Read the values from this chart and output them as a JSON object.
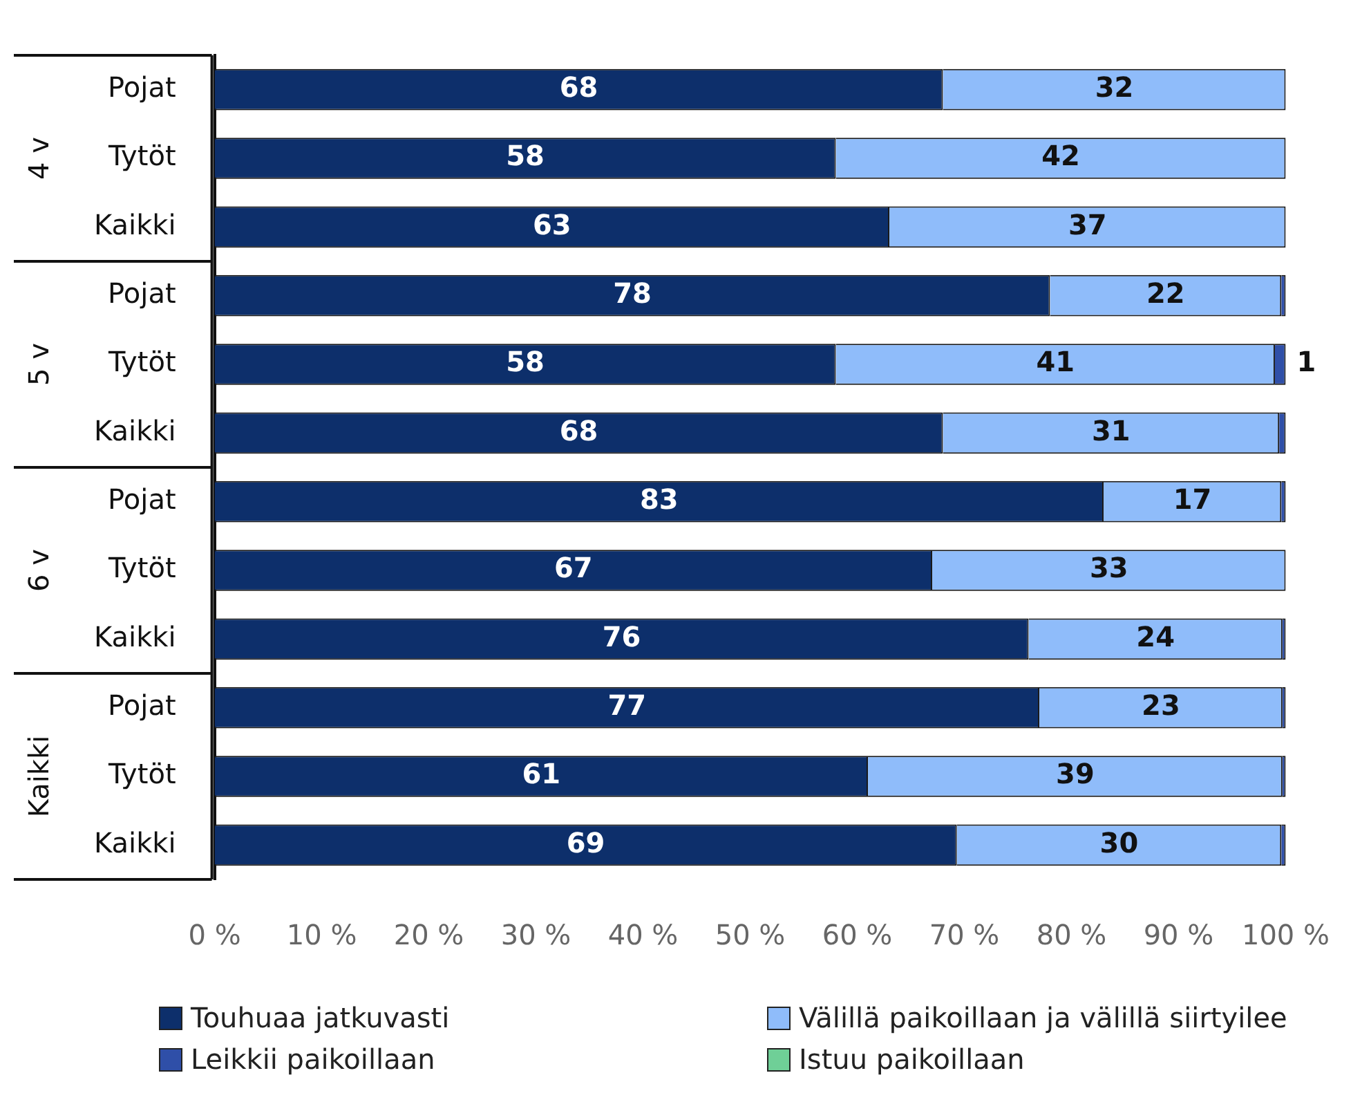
{
  "chart_data": {
    "type": "bar",
    "orientation": "horizontal",
    "stacked": true,
    "grid": false,
    "legend": "bottom",
    "categories": [
      "Pojat",
      "Tytöt",
      "Kaikki",
      "Pojat",
      "Tytöt",
      "Kaikki",
      "Pojat",
      "Tytöt",
      "Kaikki",
      "Pojat",
      "Tytöt",
      "Kaikki"
    ],
    "annotations": [
      "4 v",
      "5 v",
      "6 v",
      "Kaikki"
    ],
    "xlim": [
      0,
      100
    ],
    "xticks": [
      {
        "value": 0,
        "label": "0 %"
      },
      {
        "value": 10,
        "label": "10 %"
      },
      {
        "value": 20,
        "label": "20 %"
      },
      {
        "value": 30,
        "label": "30 %"
      },
      {
        "value": 40,
        "label": "40 %"
      },
      {
        "value": 50,
        "label": "50 %"
      },
      {
        "value": 60,
        "label": "60 %"
      },
      {
        "value": 70,
        "label": "70 %"
      },
      {
        "value": 80,
        "label": "80 %"
      },
      {
        "value": 90,
        "label": "90 %"
      },
      {
        "value": 100,
        "label": "100 %"
      }
    ],
    "series": [
      {
        "name": "Touhuaa jatkuvasti",
        "color": "#0d2f6b",
        "values": [
          68,
          58,
          63,
          78,
          58,
          68,
          83,
          67,
          76,
          77,
          61,
          69.3
        ],
        "value_labels": [
          "68",
          "58",
          "63",
          "78",
          "58",
          "68",
          "83",
          "67",
          "76",
          "77",
          "61",
          "69"
        ]
      },
      {
        "name": "Välillä paikoillaan ja välillä siirtyilee",
        "color": "#8fbcfa",
        "values": [
          32,
          42,
          37,
          21.6,
          41,
          31.4,
          16.6,
          33,
          23.7,
          22.7,
          38.7,
          30.3
        ],
        "value_labels": [
          "32",
          "42",
          "37",
          "22",
          "41",
          "31",
          "17",
          "33",
          "24",
          "23",
          "39",
          "30"
        ]
      },
      {
        "name": "Leikkii paikoillaan",
        "color": "#2f4fa8",
        "values": [
          0,
          0,
          0,
          0.4,
          1,
          0.6,
          0.4,
          0,
          0.3,
          0.3,
          0.3,
          0.4
        ],
        "value_labels": [
          null,
          null,
          null,
          null,
          "1",
          null,
          null,
          null,
          null,
          null,
          null,
          null
        ]
      },
      {
        "name": "Istuu paikoillaan",
        "color": "#6fcf97",
        "values": [
          0,
          0,
          0,
          0,
          0,
          0,
          0,
          0,
          0,
          0,
          0,
          0
        ]
      }
    ]
  }
}
